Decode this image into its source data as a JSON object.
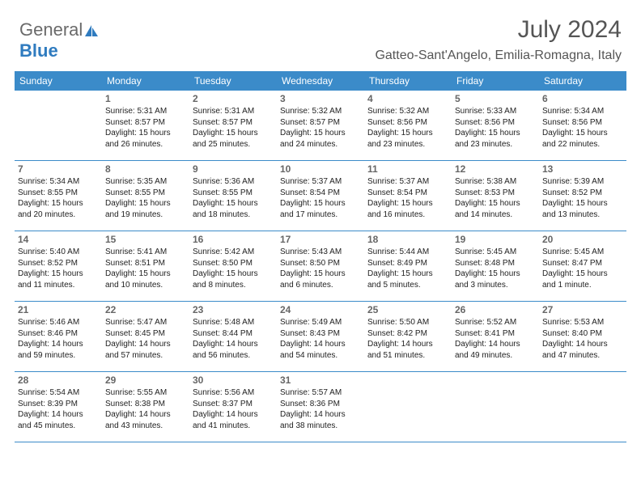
{
  "logo": {
    "part1": "General",
    "part2": "Blue"
  },
  "title": "July 2024",
  "location": "Gatteo-Sant'Angelo, Emilia-Romagna, Italy",
  "colors": {
    "header_bg": "#3b8bc9",
    "header_text": "#ffffff",
    "border": "#3b8bc9",
    "daynum": "#666666",
    "body_text": "#222222",
    "logo_gray": "#6a6a6a",
    "logo_blue": "#2f7bbf"
  },
  "day_headers": [
    "Sunday",
    "Monday",
    "Tuesday",
    "Wednesday",
    "Thursday",
    "Friday",
    "Saturday"
  ],
  "weeks": [
    [
      {
        "num": "",
        "sunrise": "",
        "sunset": "",
        "daylight": ""
      },
      {
        "num": "1",
        "sunrise": "Sunrise: 5:31 AM",
        "sunset": "Sunset: 8:57 PM",
        "daylight": "Daylight: 15 hours and 26 minutes."
      },
      {
        "num": "2",
        "sunrise": "Sunrise: 5:31 AM",
        "sunset": "Sunset: 8:57 PM",
        "daylight": "Daylight: 15 hours and 25 minutes."
      },
      {
        "num": "3",
        "sunrise": "Sunrise: 5:32 AM",
        "sunset": "Sunset: 8:57 PM",
        "daylight": "Daylight: 15 hours and 24 minutes."
      },
      {
        "num": "4",
        "sunrise": "Sunrise: 5:32 AM",
        "sunset": "Sunset: 8:56 PM",
        "daylight": "Daylight: 15 hours and 23 minutes."
      },
      {
        "num": "5",
        "sunrise": "Sunrise: 5:33 AM",
        "sunset": "Sunset: 8:56 PM",
        "daylight": "Daylight: 15 hours and 23 minutes."
      },
      {
        "num": "6",
        "sunrise": "Sunrise: 5:34 AM",
        "sunset": "Sunset: 8:56 PM",
        "daylight": "Daylight: 15 hours and 22 minutes."
      }
    ],
    [
      {
        "num": "7",
        "sunrise": "Sunrise: 5:34 AM",
        "sunset": "Sunset: 8:55 PM",
        "daylight": "Daylight: 15 hours and 20 minutes."
      },
      {
        "num": "8",
        "sunrise": "Sunrise: 5:35 AM",
        "sunset": "Sunset: 8:55 PM",
        "daylight": "Daylight: 15 hours and 19 minutes."
      },
      {
        "num": "9",
        "sunrise": "Sunrise: 5:36 AM",
        "sunset": "Sunset: 8:55 PM",
        "daylight": "Daylight: 15 hours and 18 minutes."
      },
      {
        "num": "10",
        "sunrise": "Sunrise: 5:37 AM",
        "sunset": "Sunset: 8:54 PM",
        "daylight": "Daylight: 15 hours and 17 minutes."
      },
      {
        "num": "11",
        "sunrise": "Sunrise: 5:37 AM",
        "sunset": "Sunset: 8:54 PM",
        "daylight": "Daylight: 15 hours and 16 minutes."
      },
      {
        "num": "12",
        "sunrise": "Sunrise: 5:38 AM",
        "sunset": "Sunset: 8:53 PM",
        "daylight": "Daylight: 15 hours and 14 minutes."
      },
      {
        "num": "13",
        "sunrise": "Sunrise: 5:39 AM",
        "sunset": "Sunset: 8:52 PM",
        "daylight": "Daylight: 15 hours and 13 minutes."
      }
    ],
    [
      {
        "num": "14",
        "sunrise": "Sunrise: 5:40 AM",
        "sunset": "Sunset: 8:52 PM",
        "daylight": "Daylight: 15 hours and 11 minutes."
      },
      {
        "num": "15",
        "sunrise": "Sunrise: 5:41 AM",
        "sunset": "Sunset: 8:51 PM",
        "daylight": "Daylight: 15 hours and 10 minutes."
      },
      {
        "num": "16",
        "sunrise": "Sunrise: 5:42 AM",
        "sunset": "Sunset: 8:50 PM",
        "daylight": "Daylight: 15 hours and 8 minutes."
      },
      {
        "num": "17",
        "sunrise": "Sunrise: 5:43 AM",
        "sunset": "Sunset: 8:50 PM",
        "daylight": "Daylight: 15 hours and 6 minutes."
      },
      {
        "num": "18",
        "sunrise": "Sunrise: 5:44 AM",
        "sunset": "Sunset: 8:49 PM",
        "daylight": "Daylight: 15 hours and 5 minutes."
      },
      {
        "num": "19",
        "sunrise": "Sunrise: 5:45 AM",
        "sunset": "Sunset: 8:48 PM",
        "daylight": "Daylight: 15 hours and 3 minutes."
      },
      {
        "num": "20",
        "sunrise": "Sunrise: 5:45 AM",
        "sunset": "Sunset: 8:47 PM",
        "daylight": "Daylight: 15 hours and 1 minute."
      }
    ],
    [
      {
        "num": "21",
        "sunrise": "Sunrise: 5:46 AM",
        "sunset": "Sunset: 8:46 PM",
        "daylight": "Daylight: 14 hours and 59 minutes."
      },
      {
        "num": "22",
        "sunrise": "Sunrise: 5:47 AM",
        "sunset": "Sunset: 8:45 PM",
        "daylight": "Daylight: 14 hours and 57 minutes."
      },
      {
        "num": "23",
        "sunrise": "Sunrise: 5:48 AM",
        "sunset": "Sunset: 8:44 PM",
        "daylight": "Daylight: 14 hours and 56 minutes."
      },
      {
        "num": "24",
        "sunrise": "Sunrise: 5:49 AM",
        "sunset": "Sunset: 8:43 PM",
        "daylight": "Daylight: 14 hours and 54 minutes."
      },
      {
        "num": "25",
        "sunrise": "Sunrise: 5:50 AM",
        "sunset": "Sunset: 8:42 PM",
        "daylight": "Daylight: 14 hours and 51 minutes."
      },
      {
        "num": "26",
        "sunrise": "Sunrise: 5:52 AM",
        "sunset": "Sunset: 8:41 PM",
        "daylight": "Daylight: 14 hours and 49 minutes."
      },
      {
        "num": "27",
        "sunrise": "Sunrise: 5:53 AM",
        "sunset": "Sunset: 8:40 PM",
        "daylight": "Daylight: 14 hours and 47 minutes."
      }
    ],
    [
      {
        "num": "28",
        "sunrise": "Sunrise: 5:54 AM",
        "sunset": "Sunset: 8:39 PM",
        "daylight": "Daylight: 14 hours and 45 minutes."
      },
      {
        "num": "29",
        "sunrise": "Sunrise: 5:55 AM",
        "sunset": "Sunset: 8:38 PM",
        "daylight": "Daylight: 14 hours and 43 minutes."
      },
      {
        "num": "30",
        "sunrise": "Sunrise: 5:56 AM",
        "sunset": "Sunset: 8:37 PM",
        "daylight": "Daylight: 14 hours and 41 minutes."
      },
      {
        "num": "31",
        "sunrise": "Sunrise: 5:57 AM",
        "sunset": "Sunset: 8:36 PM",
        "daylight": "Daylight: 14 hours and 38 minutes."
      },
      {
        "num": "",
        "sunrise": "",
        "sunset": "",
        "daylight": ""
      },
      {
        "num": "",
        "sunrise": "",
        "sunset": "",
        "daylight": ""
      },
      {
        "num": "",
        "sunrise": "",
        "sunset": "",
        "daylight": ""
      }
    ]
  ]
}
